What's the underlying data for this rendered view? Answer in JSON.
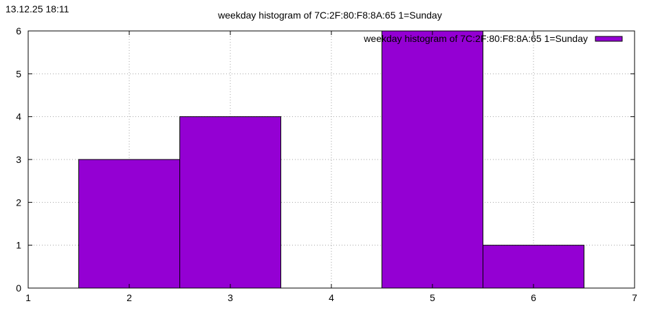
{
  "timestamp": "13.12.25 18:11",
  "chart_data": {
    "type": "bar",
    "title": "weekday histogram of 7C:2F:80:F8:8A:65 1=Sunday",
    "xlabel": "",
    "ylabel": "",
    "xlim": [
      1,
      7
    ],
    "ylim": [
      0,
      6
    ],
    "x_ticks": [
      "1",
      "2",
      "3",
      "4",
      "5",
      "6",
      "7"
    ],
    "y_ticks": [
      "0",
      "1",
      "2",
      "3",
      "4",
      "5",
      "6"
    ],
    "grid": true,
    "legend_position": "top-right",
    "bar_width": 1,
    "series": [
      {
        "name": "weekday histogram of 7C:2F:80:F8:8A:65 1=Sunday",
        "color": "#9400d3",
        "points": [
          {
            "x": 2,
            "y": 3
          },
          {
            "x": 3,
            "y": 4
          },
          {
            "x": 5,
            "y": 6
          },
          {
            "x": 6,
            "y": 1
          }
        ]
      }
    ]
  }
}
